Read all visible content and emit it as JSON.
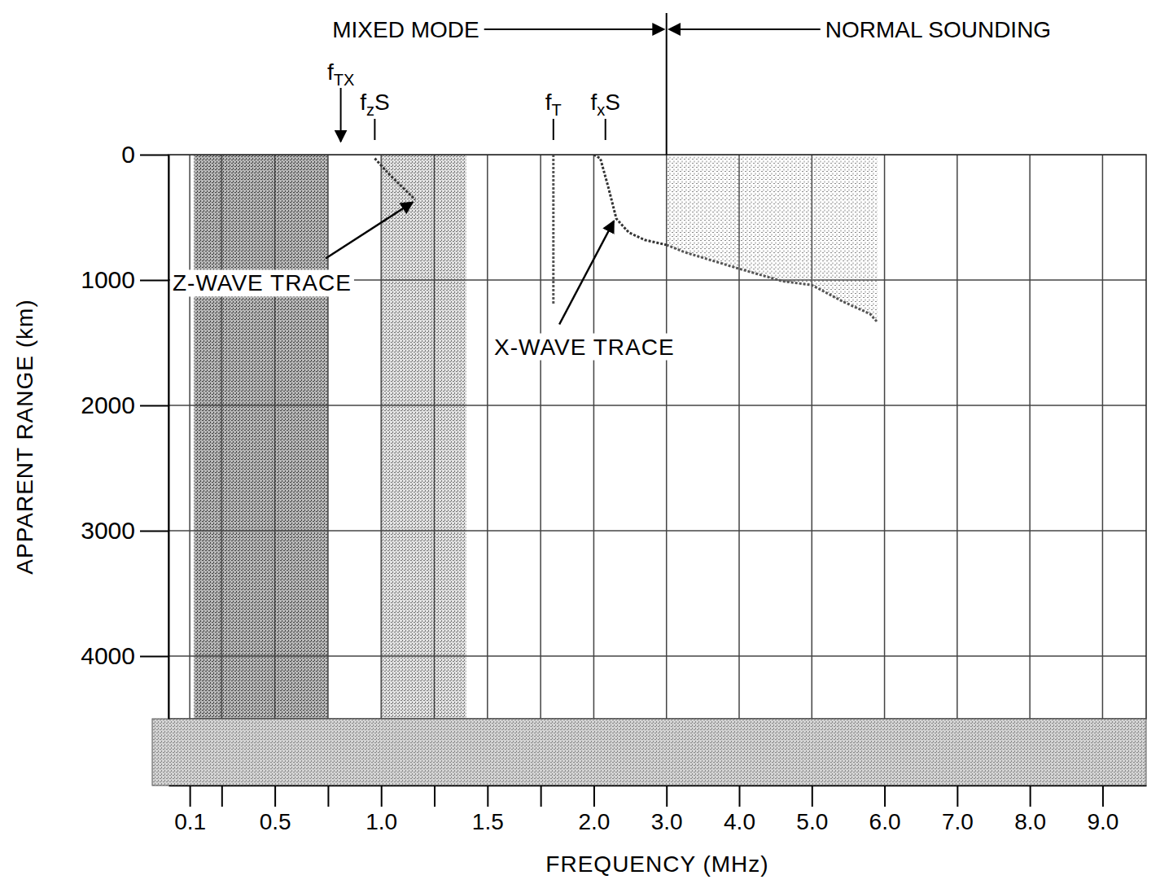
{
  "chart_data": {
    "type": "line",
    "x_label": "FREQUENCY (MHz)",
    "y_label": "APPARENT RANGE (km)",
    "xlim": [
      0,
      9.6
    ],
    "ylim": [
      0,
      4500
    ],
    "xticks": [
      0.1,
      {
        "value": 0.25,
        "label": null
      },
      0.5,
      {
        "value": 0.75,
        "label": null
      },
      {
        "value": 1,
        "label": "1.0"
      },
      {
        "value": 1.25,
        "label": null
      },
      1.5,
      {
        "value": 1.75,
        "label": null
      },
      {
        "value": 2,
        "label": "2.0"
      },
      {
        "value": 3,
        "label": "3.0"
      },
      {
        "value": 4,
        "label": "4.0"
      },
      {
        "value": 5,
        "label": "5.0"
      },
      {
        "value": 6,
        "label": "6.0"
      },
      {
        "value": 7,
        "label": "7.0"
      },
      {
        "value": 8,
        "label": "8.0"
      },
      {
        "value": 9,
        "label": "9.0"
      }
    ],
    "yticks": [
      0,
      1000,
      2000,
      3000,
      4000
    ],
    "grid": true,
    "series": [
      {
        "type": "line",
        "color": "#333333",
        "x": [
          0.97,
          1.04,
          1.1,
          1.16
        ],
        "values": [
          30,
          160,
          260,
          360
        ]
      },
      {
        "type": "line",
        "color": "#555555",
        "x": [
          1.81,
          1.81
        ],
        "values": [
          0,
          1200
        ]
      },
      {
        "type": "line",
        "color": "#333333",
        "x": [
          2.0,
          2.09,
          2.2,
          2.31,
          2.48,
          2.7,
          3.0
        ],
        "values": [
          0,
          30,
          260,
          510,
          620,
          680,
          720
        ]
      },
      {
        "type": "area",
        "color": "#555555",
        "x": [
          3.0,
          3.26,
          4.0,
          4.6,
          5.0,
          5.42,
          5.8,
          5.9
        ],
        "values": [
          720,
          780,
          910,
          1010,
          1040,
          1170,
          1270,
          1335
        ]
      }
    ],
    "noise_bands": [
      [
        0.12,
        0.75
      ],
      [
        1.0,
        1.4
      ]
    ],
    "modes": [
      {
        "text": "MIXED MODE",
        "x": 3.0
      },
      {
        "text": "NORMAL SOUNDING",
        "x": 3.0
      }
    ],
    "markers": [
      {
        "text": "fTX",
        "x": 0.81,
        "marker": "arrow"
      },
      {
        "text": "fzS",
        "x": 0.97,
        "marker": "tick"
      },
      {
        "text": "fT",
        "x": 1.81,
        "marker": "tick"
      },
      {
        "text": "fxS",
        "x": 2.16,
        "marker": "tick"
      }
    ],
    "annotations": [
      {
        "text": "Z-WAVE TRACE",
        "x": 1.16,
        "y": 360
      },
      {
        "text": "X-WAVE TRACE",
        "x": 2.31,
        "y": 510
      }
    ]
  }
}
